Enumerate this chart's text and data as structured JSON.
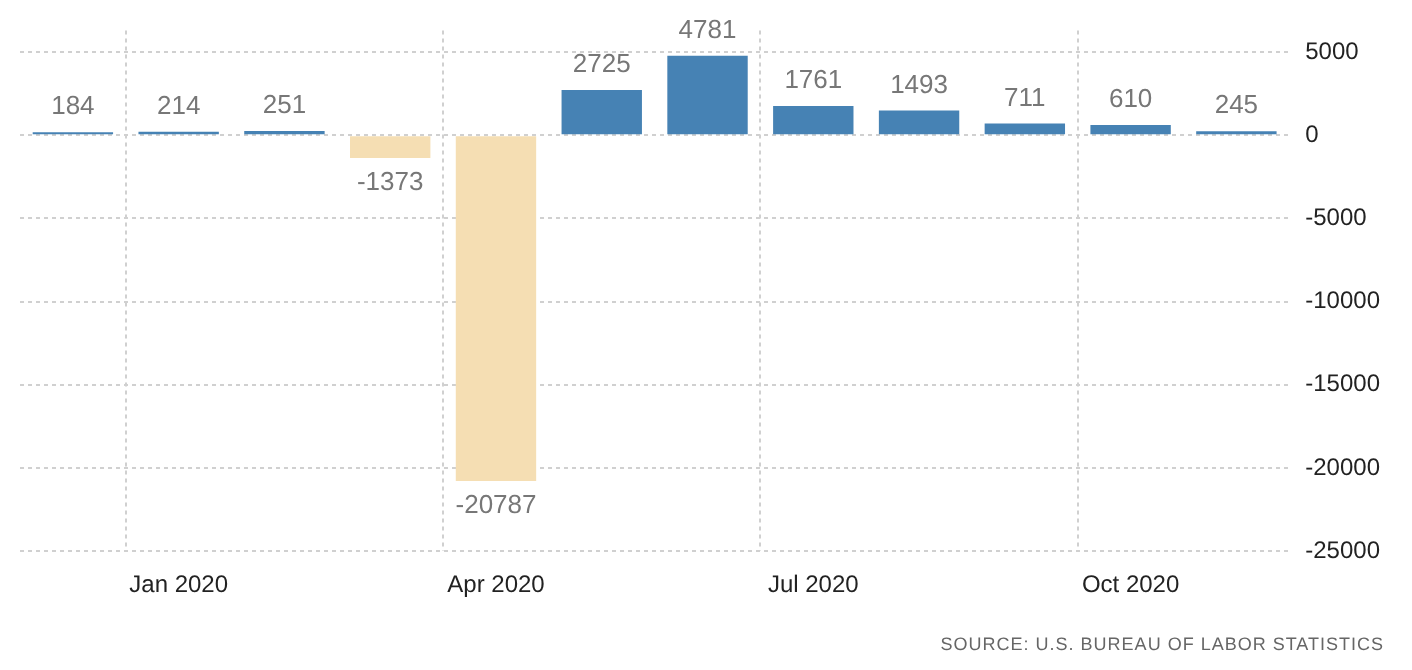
{
  "chart_data": {
    "type": "bar",
    "categories": [
      null,
      "Jan 2020",
      null,
      null,
      "Apr 2020",
      null,
      null,
      "Jul 2020",
      null,
      null,
      "Oct 2020",
      null
    ],
    "values": [
      184,
      214,
      251,
      -1373,
      -20787,
      2725,
      4781,
      1761,
      1493,
      711,
      610,
      245
    ],
    "colors": [
      "#4682b4",
      "#4682b4",
      "#4682b4",
      "#f5deb3",
      "#f5deb3",
      "#4682b4",
      "#4682b4",
      "#4682b4",
      "#4682b4",
      "#4682b4",
      "#4682b4",
      "#4682b4"
    ],
    "ylim": [
      -25000,
      6300
    ],
    "yticks": [
      5000,
      0,
      -5000,
      -10000,
      -15000,
      -20000,
      -25000
    ],
    "grid": true,
    "legend": false,
    "data_labels": true,
    "annotations": [
      "SOURCE: U.S. BUREAU OF LABOR STATISTICS"
    ]
  }
}
